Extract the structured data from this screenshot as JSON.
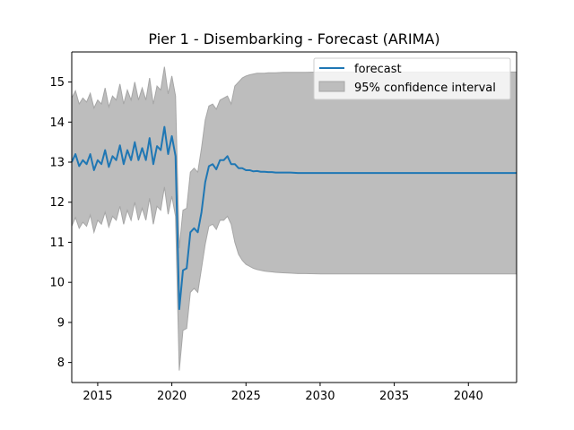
{
  "chart_data": {
    "type": "line",
    "title": "Pier 1 - Disembarking - Forecast (ARIMA)",
    "xlabel": "",
    "ylabel": "",
    "xlim": [
      2013.25,
      2043.25
    ],
    "ylim": [
      7.5,
      15.75
    ],
    "xticks": [
      2015,
      2020,
      2025,
      2030,
      2035,
      2040
    ],
    "yticks": [
      8,
      9,
      10,
      11,
      12,
      13,
      14,
      15
    ],
    "grid": false,
    "legend_position": "upper right",
    "legend": {
      "forecast_label": "forecast",
      "ci_label": "95% confidence interval"
    },
    "colors": {
      "forecast": "#1f77b4",
      "ci_fill": "#bdbdbd",
      "ci_edge": "#a6a6a6"
    },
    "series": [
      {
        "name": "forecast",
        "x": [
          2013.25,
          2013.5,
          2013.75,
          2014.0,
          2014.25,
          2014.5,
          2014.75,
          2015.0,
          2015.25,
          2015.5,
          2015.75,
          2016.0,
          2016.25,
          2016.5,
          2016.75,
          2017.0,
          2017.25,
          2017.5,
          2017.75,
          2018.0,
          2018.25,
          2018.5,
          2018.75,
          2019.0,
          2019.25,
          2019.5,
          2019.75,
          2020.0,
          2020.25,
          2020.5,
          2020.75,
          2021.0,
          2021.25,
          2021.5,
          2021.75,
          2022.0,
          2022.25,
          2022.5,
          2022.75,
          2023.0,
          2023.25,
          2023.5,
          2023.75,
          2024.0,
          2024.25,
          2024.5,
          2024.75,
          2025.0,
          2025.25,
          2025.5,
          2025.75,
          2026.0,
          2026.25,
          2026.5,
          2026.75,
          2027.0,
          2027.5,
          2028.0,
          2028.5,
          2029.0,
          2030.0,
          2031.0,
          2032.0,
          2034.0,
          2036.0,
          2038.0,
          2040.0,
          2042.0,
          2043.25
        ],
        "y": [
          13.0,
          13.2,
          12.9,
          13.05,
          12.95,
          13.2,
          12.8,
          13.05,
          12.95,
          13.3,
          12.88,
          13.15,
          13.05,
          13.42,
          12.95,
          13.3,
          13.05,
          13.5,
          13.05,
          13.35,
          13.05,
          13.6,
          12.95,
          13.4,
          13.3,
          13.88,
          13.2,
          13.65,
          13.15,
          9.33,
          10.3,
          10.35,
          11.25,
          11.35,
          11.25,
          11.75,
          12.5,
          12.9,
          12.95,
          12.82,
          13.05,
          13.05,
          13.15,
          12.95,
          12.95,
          12.85,
          12.85,
          12.8,
          12.8,
          12.77,
          12.78,
          12.76,
          12.76,
          12.75,
          12.75,
          12.74,
          12.74,
          12.74,
          12.73,
          12.73,
          12.73,
          12.73,
          12.73,
          12.73,
          12.73,
          12.73,
          12.73,
          12.73,
          12.73
        ]
      }
    ],
    "confidence_interval": {
      "name": "95% confidence interval",
      "x": [
        2013.25,
        2013.5,
        2013.75,
        2014.0,
        2014.25,
        2014.5,
        2014.75,
        2015.0,
        2015.25,
        2015.5,
        2015.75,
        2016.0,
        2016.25,
        2016.5,
        2016.75,
        2017.0,
        2017.25,
        2017.5,
        2017.75,
        2018.0,
        2018.25,
        2018.5,
        2018.75,
        2019.0,
        2019.25,
        2019.5,
        2019.75,
        2020.0,
        2020.25,
        2020.5,
        2020.75,
        2021.0,
        2021.25,
        2021.5,
        2021.75,
        2022.0,
        2022.25,
        2022.5,
        2022.75,
        2023.0,
        2023.25,
        2023.5,
        2023.75,
        2024.0,
        2024.25,
        2024.5,
        2024.75,
        2025.0,
        2025.25,
        2025.5,
        2025.75,
        2026.0,
        2026.25,
        2026.5,
        2026.75,
        2027.0,
        2027.5,
        2028.0,
        2028.5,
        2029.0,
        2030.0,
        2031.0,
        2032.0,
        2034.0,
        2036.0,
        2038.0,
        2040.0,
        2042.0,
        2043.25
      ],
      "upper": [
        14.6,
        14.78,
        14.45,
        14.6,
        14.5,
        14.72,
        14.35,
        14.55,
        14.45,
        14.85,
        14.38,
        14.65,
        14.55,
        14.95,
        14.45,
        14.8,
        14.55,
        15.0,
        14.55,
        14.85,
        14.55,
        15.1,
        14.45,
        14.9,
        14.8,
        15.38,
        14.7,
        15.15,
        14.65,
        10.85,
        11.8,
        11.85,
        12.75,
        12.85,
        12.75,
        13.35,
        14.05,
        14.4,
        14.45,
        14.32,
        14.55,
        14.6,
        14.65,
        14.45,
        14.9,
        15.0,
        15.1,
        15.15,
        15.18,
        15.2,
        15.22,
        15.22,
        15.22,
        15.23,
        15.23,
        15.23,
        15.24,
        15.24,
        15.24,
        15.24,
        15.25,
        15.25,
        15.25,
        15.25,
        15.25,
        15.25,
        15.25,
        15.25,
        15.25
      ],
      "lower": [
        11.4,
        11.62,
        11.35,
        11.5,
        11.4,
        11.68,
        11.25,
        11.55,
        11.45,
        11.75,
        11.38,
        11.65,
        11.55,
        11.9,
        11.45,
        11.8,
        11.55,
        12.0,
        11.55,
        11.85,
        11.55,
        12.1,
        11.45,
        11.9,
        11.8,
        12.38,
        11.7,
        12.15,
        11.65,
        7.8,
        8.8,
        8.85,
        9.75,
        9.85,
        9.75,
        10.35,
        10.95,
        11.4,
        11.45,
        11.32,
        11.55,
        11.55,
        11.65,
        11.45,
        11.0,
        10.7,
        10.55,
        10.45,
        10.4,
        10.35,
        10.32,
        10.3,
        10.28,
        10.27,
        10.26,
        10.25,
        10.24,
        10.23,
        10.22,
        10.22,
        10.21,
        10.21,
        10.21,
        10.21,
        10.21,
        10.21,
        10.21,
        10.21,
        10.21
      ]
    }
  }
}
